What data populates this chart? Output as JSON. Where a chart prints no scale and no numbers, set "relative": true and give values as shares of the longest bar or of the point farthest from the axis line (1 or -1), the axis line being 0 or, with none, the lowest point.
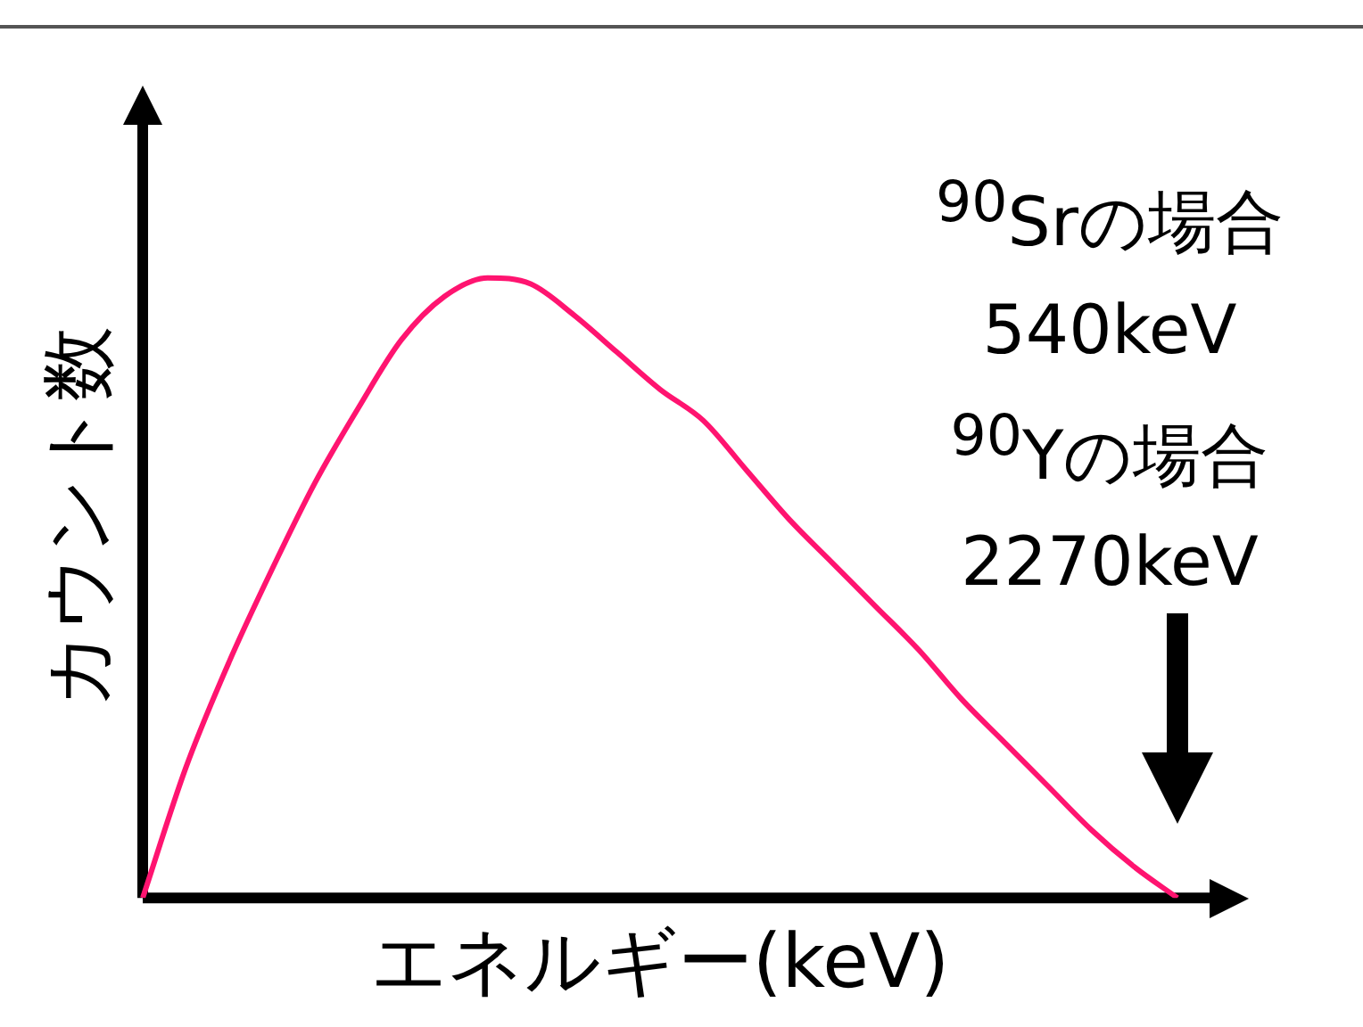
{
  "chart_data": {
    "type": "line",
    "relative": true,
    "xlabel": "エネルギー(keV)",
    "ylabel": "カウント数",
    "categories": [
      null,
      null,
      null,
      null,
      null,
      null,
      null,
      null,
      null,
      null,
      null,
      null,
      null,
      null,
      null,
      null,
      null,
      null,
      null,
      null,
      null,
      null,
      null,
      null,
      null
    ],
    "series": [
      {
        "color": "#ff1470",
        "values": [
          0,
          0.21,
          0.38,
          0.53,
          0.67,
          0.79,
          0.9,
          0.97,
          1,
          0.99,
          0.94,
          0.88,
          0.82,
          0.77,
          0.69,
          0.61,
          0.54,
          0.47,
          0.4,
          0.32,
          0.25,
          0.18,
          0.11,
          0.05,
          0
        ]
      }
    ],
    "annotations": [
      "$^{90}$Srの場合\n540keV",
      "$^{90}$Yの場合\n2270keV"
    ],
    "grid": false,
    "legend": false,
    "marker": "none",
    "line_style": "solid"
  }
}
